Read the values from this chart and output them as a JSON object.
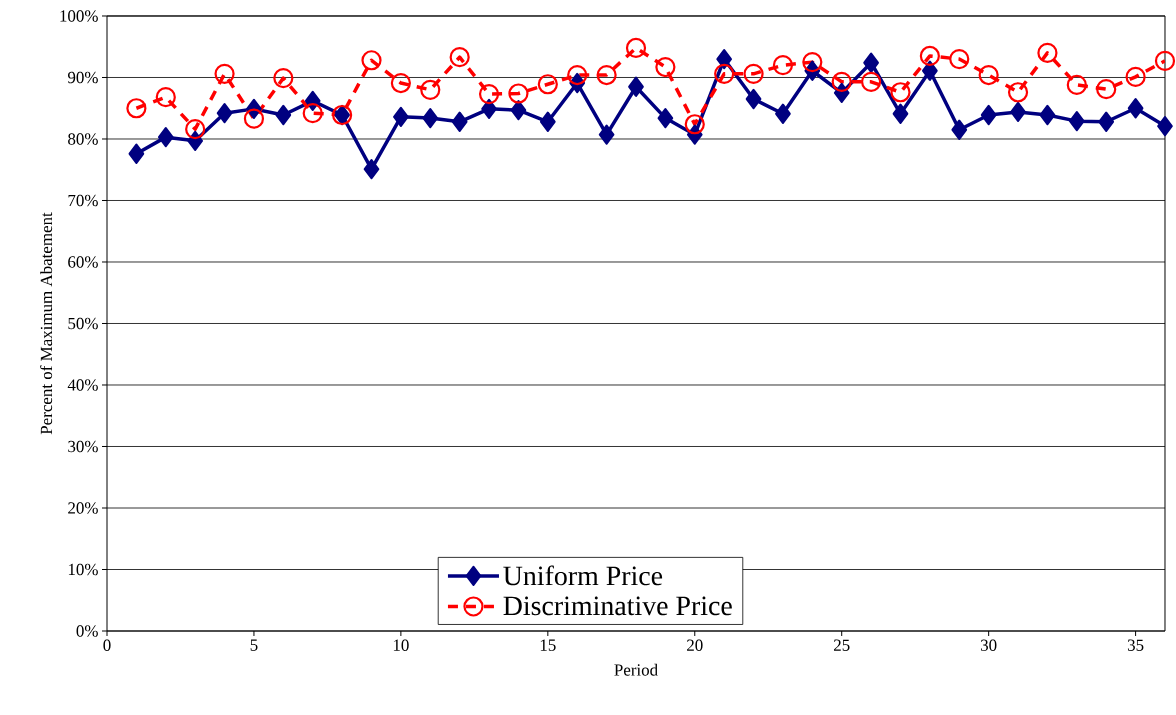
{
  "chart_data": {
    "type": "line",
    "xlabel": "Period",
    "ylabel": "Percent of Maximum Abatement",
    "x": [
      1,
      2,
      3,
      4,
      5,
      6,
      7,
      8,
      9,
      10,
      11,
      12,
      13,
      14,
      15,
      16,
      17,
      18,
      19,
      20,
      21,
      22,
      23,
      24,
      25,
      26,
      27,
      28,
      29,
      30,
      31,
      32,
      33,
      34,
      35,
      36
    ],
    "series": [
      {
        "name": "Uniform Price",
        "color": "#000080",
        "marker": "diamond",
        "line_style": "solid",
        "values": [
          77.6,
          80.3,
          79.7,
          84.2,
          84.9,
          83.9,
          86.2,
          83.9,
          75.1,
          83.6,
          83.4,
          82.8,
          84.9,
          84.7,
          82.8,
          89.1,
          80.7,
          88.5,
          83.4,
          80.7,
          93.0,
          86.5,
          84.1,
          91.1,
          87.5,
          92.4,
          84.1,
          91.1,
          81.5,
          83.9,
          84.4,
          83.9,
          82.9,
          82.8,
          85.0,
          82.1
        ]
      },
      {
        "name": "Discriminative Price",
        "color": "#ff0000",
        "marker": "circle",
        "line_style": "dashed",
        "values": [
          85.0,
          86.8,
          81.6,
          90.6,
          83.3,
          89.9,
          84.2,
          83.9,
          92.8,
          89.1,
          88.0,
          93.3,
          87.3,
          87.4,
          88.9,
          90.4,
          90.4,
          94.8,
          91.7,
          82.4,
          90.6,
          90.6,
          92.0,
          92.5,
          89.3,
          89.3,
          87.6,
          93.5,
          93.0,
          90.4,
          87.6,
          94.0,
          88.8,
          88.1,
          90.1,
          92.7
        ]
      }
    ],
    "xlim": [
      0,
      36
    ],
    "xticks": [
      0,
      5,
      10,
      15,
      20,
      25,
      30,
      35
    ],
    "ylim": [
      0,
      100
    ],
    "yticks": [
      {
        "value": 0,
        "label": "0%"
      },
      {
        "value": 10,
        "label": "10%"
      },
      {
        "value": 20,
        "label": "20%"
      },
      {
        "value": 30,
        "label": "30%"
      },
      {
        "value": 40,
        "label": "40%"
      },
      {
        "value": 50,
        "label": "50%"
      },
      {
        "value": 60,
        "label": "60%"
      },
      {
        "value": 70,
        "label": "70%"
      },
      {
        "value": 80,
        "label": "80%"
      },
      {
        "value": 90,
        "label": "90%"
      },
      {
        "value": 100,
        "label": "100%"
      }
    ],
    "grid": "y",
    "legend": "bottom"
  }
}
